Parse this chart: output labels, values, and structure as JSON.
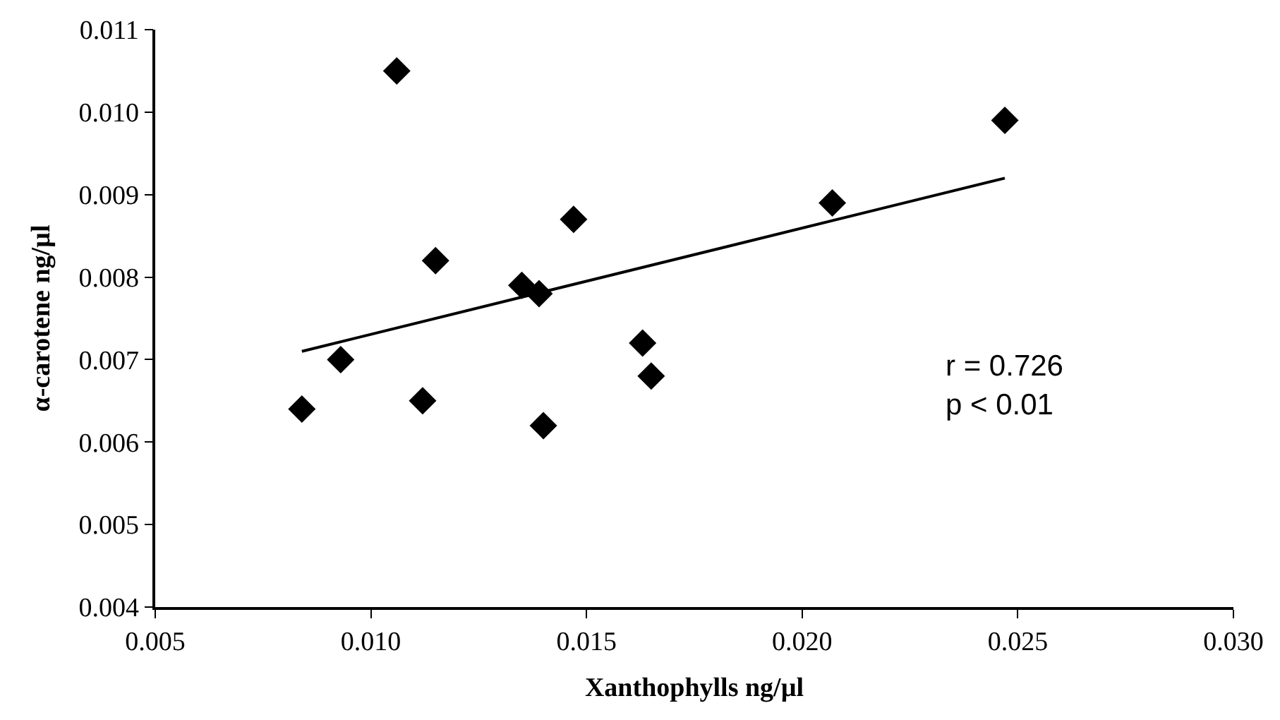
{
  "chart_data": {
    "type": "scatter",
    "xlabel": "Xanthophylls ng/µl",
    "ylabel": "α-carotene ng/µl",
    "xlim": [
      0.005,
      0.03
    ],
    "xticks": [
      0.005,
      {
        "value": 0.01,
        "label": "0.010"
      },
      0.015,
      {
        "value": 0.02,
        "label": "0.020"
      },
      0.025,
      {
        "value": 0.03,
        "label": "0.030"
      }
    ],
    "ylim": [
      0.004,
      0.011
    ],
    "yticks": [
      0.004,
      0.005,
      0.006,
      0.007,
      0.008,
      0.009,
      {
        "value": 0.01,
        "label": "0.010"
      },
      0.011
    ],
    "marker": "diamond",
    "series": [
      {
        "color": "#000000",
        "x": [
          0.0084,
          0.0093,
          0.0106,
          0.0112,
          0.0115,
          0.0135,
          0.0139,
          0.014,
          0.0147,
          0.0163,
          0.0165,
          0.0207,
          0.0247
        ],
        "values": [
          0.0064,
          0.007,
          0.0105,
          0.0065,
          0.0082,
          0.0079,
          0.0078,
          0.0062,
          0.0087,
          0.0072,
          0.0068,
          0.0089,
          0.0099
        ]
      },
      {
        "type": "line",
        "marker": "none",
        "color": "#000000",
        "x": [
          0.0084,
          0.0247
        ],
        "values": [
          0.0071,
          0.0092
        ]
      }
    ],
    "annotations": [
      "r = 0.726\np < 0.01"
    ]
  }
}
